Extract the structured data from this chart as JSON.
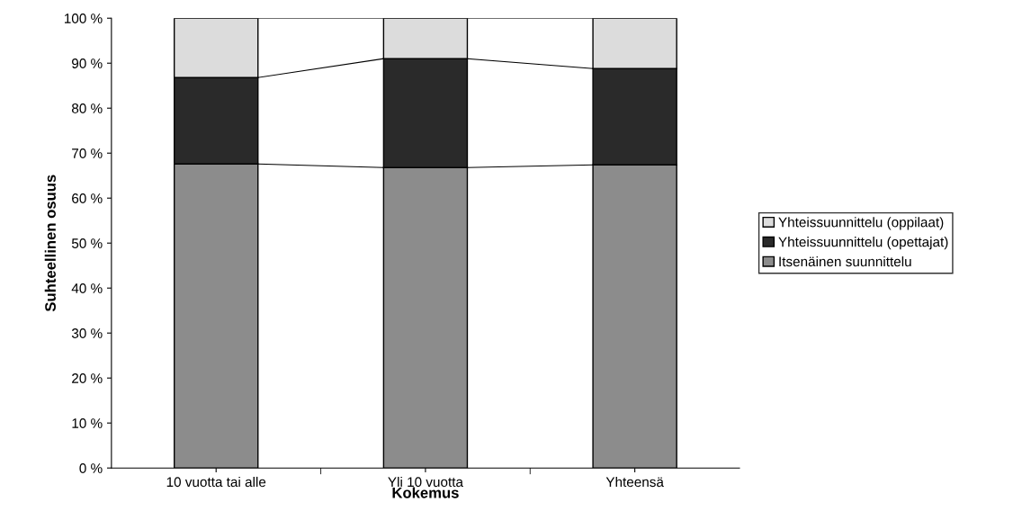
{
  "chart_data": {
    "type": "bar",
    "stacked": true,
    "xlabel": "Kokemus",
    "ylabel": "Suhteellinen osuus",
    "categories": [
      "10 vuotta tai alle",
      "Yli 10 vuotta",
      "Yhteensä"
    ],
    "series": [
      {
        "name": "Itsenäinen suunnittelu",
        "color": "#8c8c8c",
        "values": [
          67.6,
          66.8,
          67.4
        ]
      },
      {
        "name": "Yhteissuunnittelu (opettajat)",
        "color": "#2a2a2a",
        "values": [
          19.2,
          24.2,
          21.4
        ]
      },
      {
        "name": "Yhteissuunnittelu (oppilaat)",
        "color": "#dcdcdc",
        "values": [
          13.2,
          9.0,
          11.2
        ]
      }
    ],
    "ylim": [
      0,
      100
    ],
    "yticks": [
      {
        "value": 0,
        "label": "0 %"
      },
      {
        "value": 10,
        "label": "10 %"
      },
      {
        "value": 20,
        "label": "20 %"
      },
      {
        "value": 30,
        "label": "30 %"
      },
      {
        "value": 40,
        "label": "40 %"
      },
      {
        "value": 50,
        "label": "50 %"
      },
      {
        "value": 60,
        "label": "60 %"
      },
      {
        "value": 70,
        "label": "70 %"
      },
      {
        "value": 80,
        "label": "80 %"
      },
      {
        "value": 90,
        "label": "90 %"
      },
      {
        "value": 100,
        "label": "100 %"
      }
    ],
    "grid": false,
    "legend": "right"
  }
}
